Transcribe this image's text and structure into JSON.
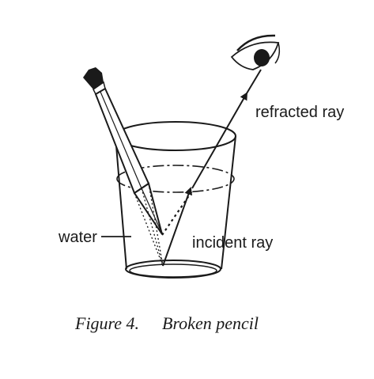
{
  "labels": {
    "refracted_ray": "refracted ray",
    "incident_ray": "incident ray",
    "water": "water"
  },
  "caption": {
    "figure": "Figure 4.",
    "title": "Broken pencil"
  },
  "colors": {
    "ink": "#1a1a1a",
    "background": "#ffffff"
  },
  "icons": [
    "eye-icon",
    "pencil-icon",
    "glass-icon"
  ]
}
